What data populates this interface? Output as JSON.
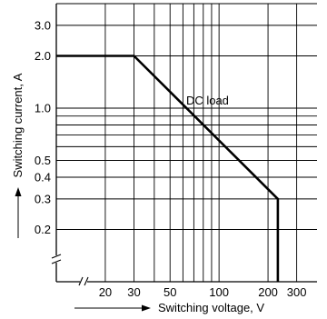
{
  "chart_data": {
    "type": "line",
    "title": "",
    "xlabel": "Switching voltage, V",
    "ylabel": "Switching current, A",
    "x_scale": "log",
    "y_scale": "log",
    "xlim": [
      10,
      400
    ],
    "ylim": [
      0.1,
      4
    ],
    "x_ticks": [
      20,
      30,
      50,
      100,
      200,
      300
    ],
    "x_tick_labels": [
      "20",
      "30",
      "50",
      "100",
      "200",
      "300"
    ],
    "x_minor_grid": [
      40,
      60,
      70,
      80,
      90,
      400
    ],
    "y_ticks": [
      0.2,
      0.3,
      0.4,
      0.5,
      1.0,
      2.0,
      3.0
    ],
    "y_tick_labels": [
      "0.2",
      "0.3",
      "0.4",
      "0.5",
      "1.0",
      "2.0",
      "3.0"
    ],
    "y_minor_grid": [
      0.6,
      0.7,
      0.8,
      0.9
    ],
    "grid": true,
    "axis_breaks": [
      "x",
      "y"
    ],
    "series": [
      {
        "x": [
          10,
          30,
          230,
          230
        ],
        "y": [
          2.0,
          2.0,
          0.3,
          0.1
        ]
      }
    ],
    "annotations": [
      {
        "text": "DC load",
        "x": 90,
        "y": 1.05
      }
    ]
  }
}
